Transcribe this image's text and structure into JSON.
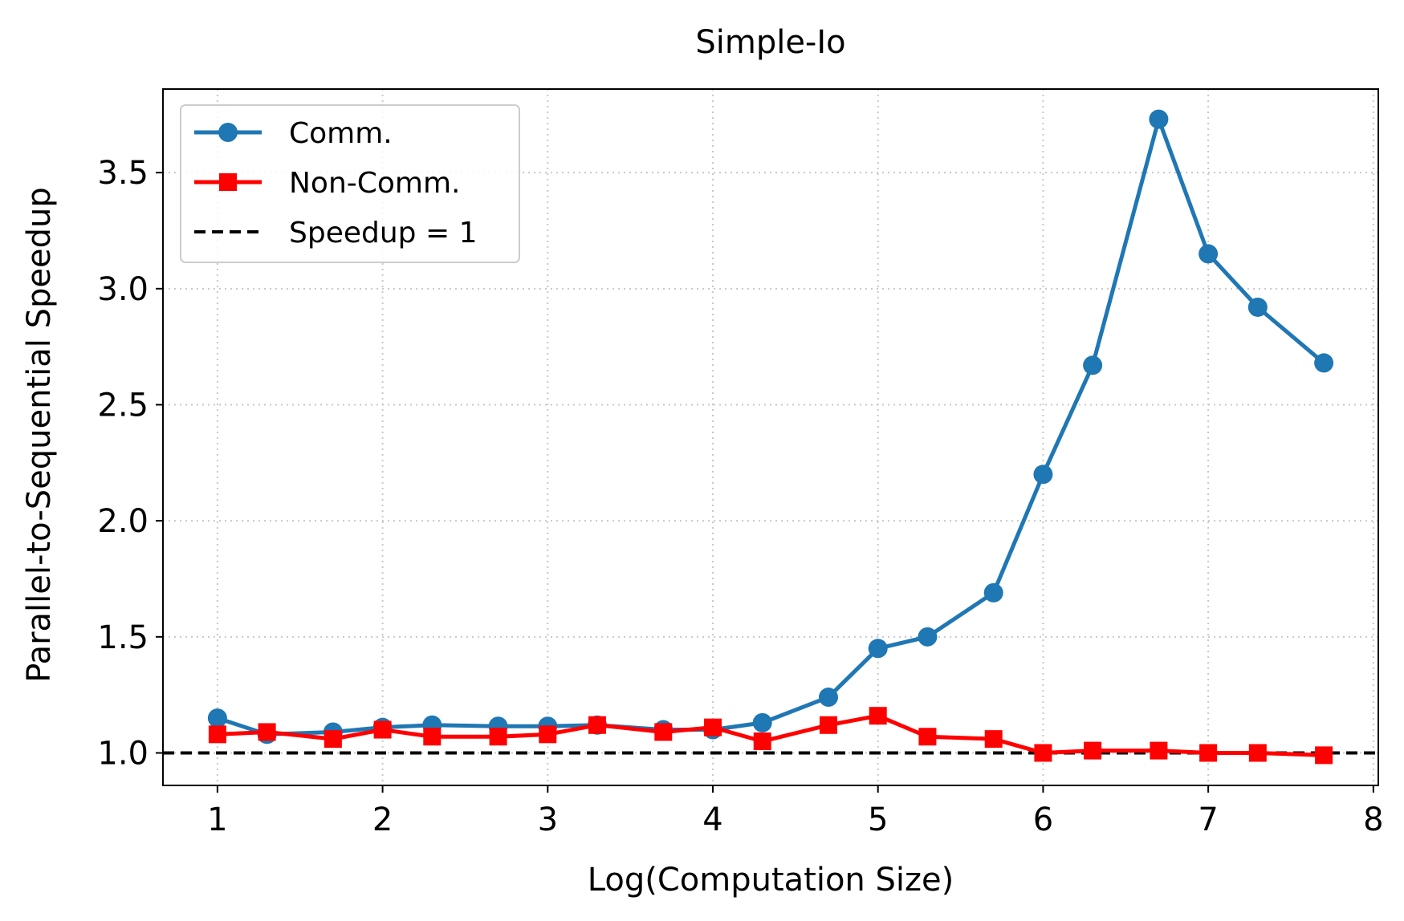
{
  "chart_data": {
    "type": "line",
    "title": "Simple-Io",
    "xlabel": "Log(Computation Size)",
    "ylabel": "Parallel-to-Sequential Speedup",
    "xlim": [
      0.67,
      8.03
    ],
    "ylim": [
      0.86,
      3.86
    ],
    "xticks": [
      1,
      2,
      3,
      4,
      5,
      6,
      7,
      8
    ],
    "xtick_labels": [
      "1",
      "2",
      "3",
      "4",
      "5",
      "6",
      "7",
      "8"
    ],
    "yticks": [
      1.0,
      1.5,
      2.0,
      2.5,
      3.0,
      3.5
    ],
    "ytick_labels": [
      "1.0",
      "1.5",
      "2.0",
      "2.5",
      "3.0",
      "3.5"
    ],
    "grid": true,
    "legend_position": "top-left",
    "series": [
      {
        "name": "Comm.",
        "color": "#1f77b4",
        "marker": "circle",
        "x": [
          1.0,
          1.3,
          1.7,
          2.0,
          2.3,
          2.7,
          3.0,
          3.3,
          3.7,
          4.0,
          4.3,
          4.7,
          5.0,
          5.3,
          5.7,
          6.0,
          6.3,
          6.7,
          7.0,
          7.3,
          7.7
        ],
        "y": [
          1.15,
          1.08,
          1.09,
          1.11,
          1.12,
          1.115,
          1.115,
          1.12,
          1.1,
          1.1,
          1.13,
          1.24,
          1.45,
          1.5,
          1.69,
          2.2,
          2.67,
          3.73,
          3.15,
          2.92,
          2.68
        ]
      },
      {
        "name": "Non-Comm.",
        "color": "#ff0000",
        "marker": "square",
        "x": [
          1.0,
          1.3,
          1.7,
          2.0,
          2.3,
          2.7,
          3.0,
          3.3,
          3.7,
          4.0,
          4.3,
          4.7,
          5.0,
          5.3,
          5.7,
          6.0,
          6.3,
          6.7,
          7.0,
          7.3,
          7.7
        ],
        "y": [
          1.08,
          1.09,
          1.06,
          1.1,
          1.07,
          1.07,
          1.08,
          1.12,
          1.09,
          1.11,
          1.05,
          1.12,
          1.16,
          1.07,
          1.06,
          1.0,
          1.01,
          1.01,
          1.0,
          1.0,
          0.99
        ]
      },
      {
        "name": "Speedup = 1",
        "color": "#000000",
        "style": "dashed",
        "y_constant": 1.0
      }
    ]
  }
}
